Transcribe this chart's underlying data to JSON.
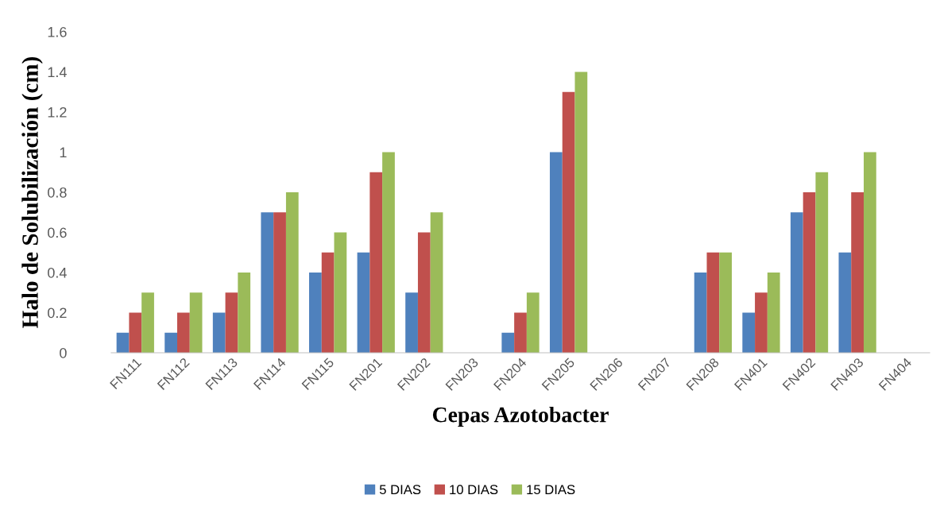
{
  "chart_data": {
    "type": "bar",
    "xlabel": "Cepas Azotobacter",
    "ylabel": "Halo de Solubilización (cm)",
    "categories": [
      "FN111",
      "FN112",
      "FN113",
      "FN114",
      "FN115",
      "FN201",
      "FN202",
      "FN203",
      "FN204",
      "FN205",
      "FN206",
      "FN207",
      "FN208",
      "FN401",
      "FN402",
      "FN403",
      "FN404"
    ],
    "series": [
      {
        "name": "5 DIAS",
        "color": "#4f81bd",
        "values": [
          0.1,
          0.1,
          0.2,
          0.7,
          0.4,
          0.5,
          0.3,
          null,
          0.1,
          1.0,
          null,
          null,
          0.4,
          0.2,
          0.7,
          0.5,
          null
        ]
      },
      {
        "name": "10 DIAS",
        "color": "#c0504d",
        "values": [
          0.2,
          0.2,
          0.3,
          0.7,
          0.5,
          0.9,
          0.6,
          null,
          0.2,
          1.3,
          null,
          null,
          0.5,
          0.3,
          0.8,
          0.8,
          null
        ]
      },
      {
        "name": "15 DIAS",
        "color": "#9bbb59",
        "values": [
          0.3,
          0.3,
          0.4,
          0.8,
          0.6,
          1.0,
          0.7,
          null,
          0.3,
          1.4,
          null,
          null,
          0.5,
          0.4,
          0.9,
          1.0,
          null
        ]
      }
    ],
    "ylim": [
      0,
      1.6
    ],
    "yticks": [
      {
        "value": 0,
        "label": "0"
      },
      0.2,
      0.4,
      0.6,
      0.8,
      {
        "value": 1,
        "label": "1"
      },
      1.2,
      1.4,
      1.6
    ],
    "grid": false,
    "legend": "bottom"
  }
}
